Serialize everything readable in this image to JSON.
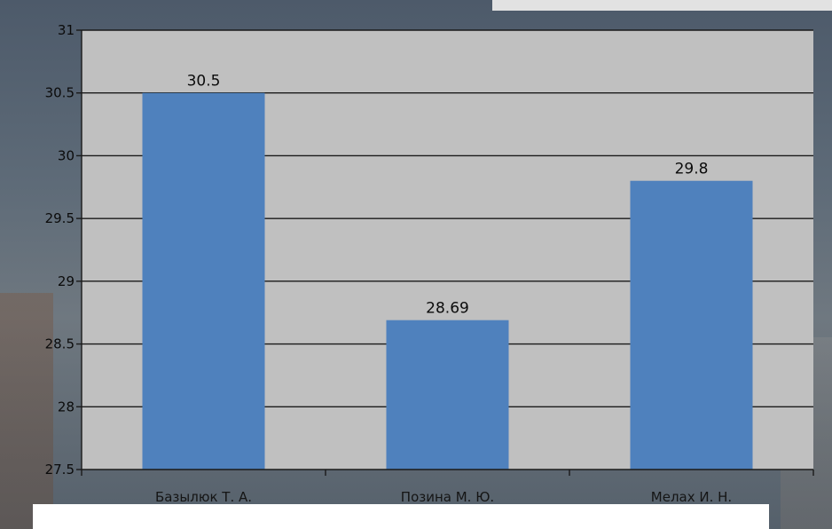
{
  "chart_data": {
    "type": "bar",
    "categories": [
      "Базылюк Т. А.",
      "Позина М. Ю.",
      "Мелах И. Н."
    ],
    "values": [
      30.5,
      28.69,
      29.8
    ],
    "value_labels": [
      "30.5",
      "28.69",
      "29.8"
    ],
    "y_ticks": [
      "27.5",
      "28",
      "28.5",
      "29",
      "29.5",
      "30",
      "30.5",
      "31"
    ],
    "ylim": [
      27.5,
      31
    ],
    "grid": true,
    "legend": "none",
    "title": "",
    "xlabel": "",
    "ylabel": ""
  },
  "colors": {
    "bar": "#4f81bd",
    "plot_area": "#c0c0c0",
    "gridline": "#1a1a1a"
  }
}
